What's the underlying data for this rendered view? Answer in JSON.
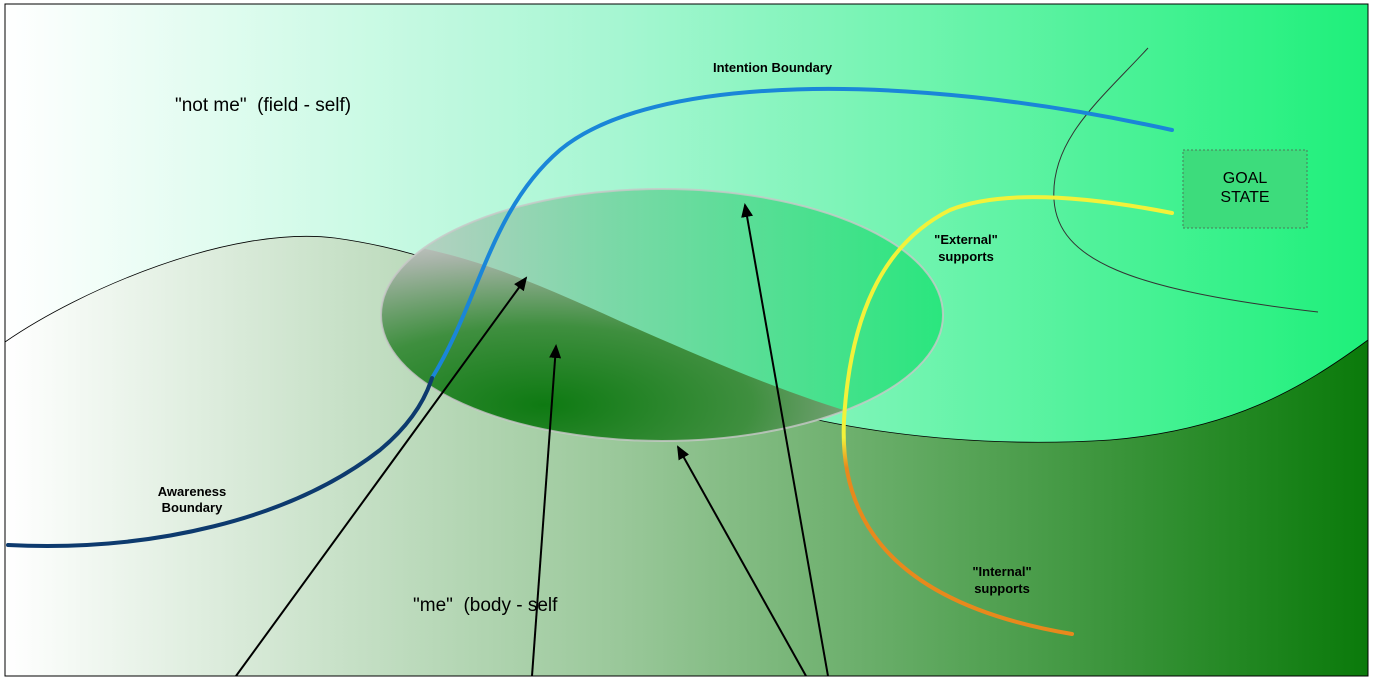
{
  "labels": {
    "not_me": "\"not me\"  (field - self)",
    "intention_boundary": "Intention Boundary",
    "goal_state_line1": "GOAL",
    "goal_state_line2": "STATE",
    "external_supports_line1": "\"External\"",
    "external_supports_line2": "supports",
    "internal_supports_line1": "\"Internal\"",
    "internal_supports_line2": "supports",
    "awareness_boundary_line1": "Awareness",
    "awareness_boundary_line2": "Boundary",
    "me": "\"me\"  (body - self"
  },
  "colors": {
    "field_light": "#ffffff",
    "field_green": "#1ef07a",
    "body_light": "#ffffff",
    "body_dark": "#0a7a0a",
    "intention_blue": "#1a86d8",
    "awareness_navy": "#0d3a6e",
    "external_yellow": "#f2f23a",
    "internal_orange": "#e8891c",
    "overlap_grey": "#c8c8c8",
    "goal_box": "#3ddc7c"
  }
}
